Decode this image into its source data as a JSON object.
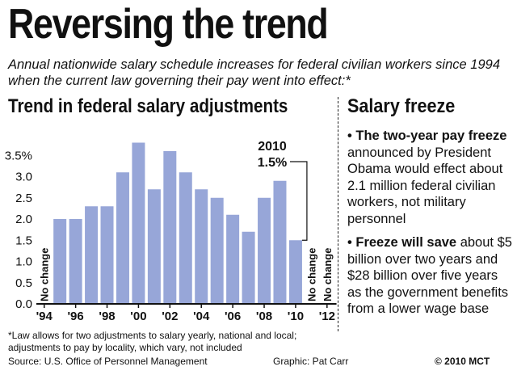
{
  "header": {
    "title": "Reversing the trend",
    "subtitle": "Annual nationwide salary schedule increases for federal civilian workers since 1994 when the current law governing their pay went into effect:*"
  },
  "colors": {
    "bar": "#97a6d8",
    "text": "#111111",
    "axis": "#111111"
  },
  "chart_data": {
    "type": "bar",
    "title": "Trend in federal salary adjustments",
    "xlabel": "",
    "ylabel": "",
    "categories": [
      "'94",
      "'95",
      "'96",
      "'97",
      "'98",
      "'99",
      "'00",
      "'01",
      "'02",
      "'03",
      "'04",
      "'05",
      "'06",
      "'07",
      "'08",
      "'09",
      "'10",
      "'11",
      "'12"
    ],
    "values": [
      0,
      2.0,
      2.0,
      2.3,
      2.3,
      3.1,
      3.8,
      2.7,
      3.6,
      3.1,
      2.7,
      2.5,
      2.1,
      1.7,
      2.5,
      2.9,
      1.5,
      0,
      0
    ],
    "ylim": [
      0,
      4.0
    ],
    "yticks": [
      "0.0",
      "0.5",
      "1.0",
      "1.5",
      "2.0",
      "2.5",
      "3.0",
      "3.5%"
    ],
    "xtick_labels": [
      "'94",
      "'96",
      "'98",
      "'00",
      "'02",
      "'04",
      "'06",
      "'08",
      "'10",
      "'12"
    ],
    "no_change_label": "No change",
    "no_change_years": [
      "'94",
      "'11",
      "'12"
    ],
    "annotation": {
      "year": "2010",
      "value": "1.5%",
      "category": "'10"
    },
    "grid": false,
    "legend": "none"
  },
  "sidebar": {
    "title": "Salary freeze",
    "bullets": [
      {
        "bold": "• The two-year pay freeze",
        "text": " announced by President Obama would effect about 2.1 million federal civilian workers, not military personnel"
      },
      {
        "bold": "• Freeze will save",
        "text": " about $5 billion over two years and $28 billion over five years as the government benefits from a lower wage base"
      }
    ]
  },
  "footer": {
    "footnote": "*Law allows for two adjustments to salary yearly, national and local; adjustments to pay by locality, which vary, not included",
    "source": "Source: U.S. Office of Personnel Management",
    "graphic": "Graphic: Pat Carr",
    "copyright": "© 2010 MCT"
  }
}
